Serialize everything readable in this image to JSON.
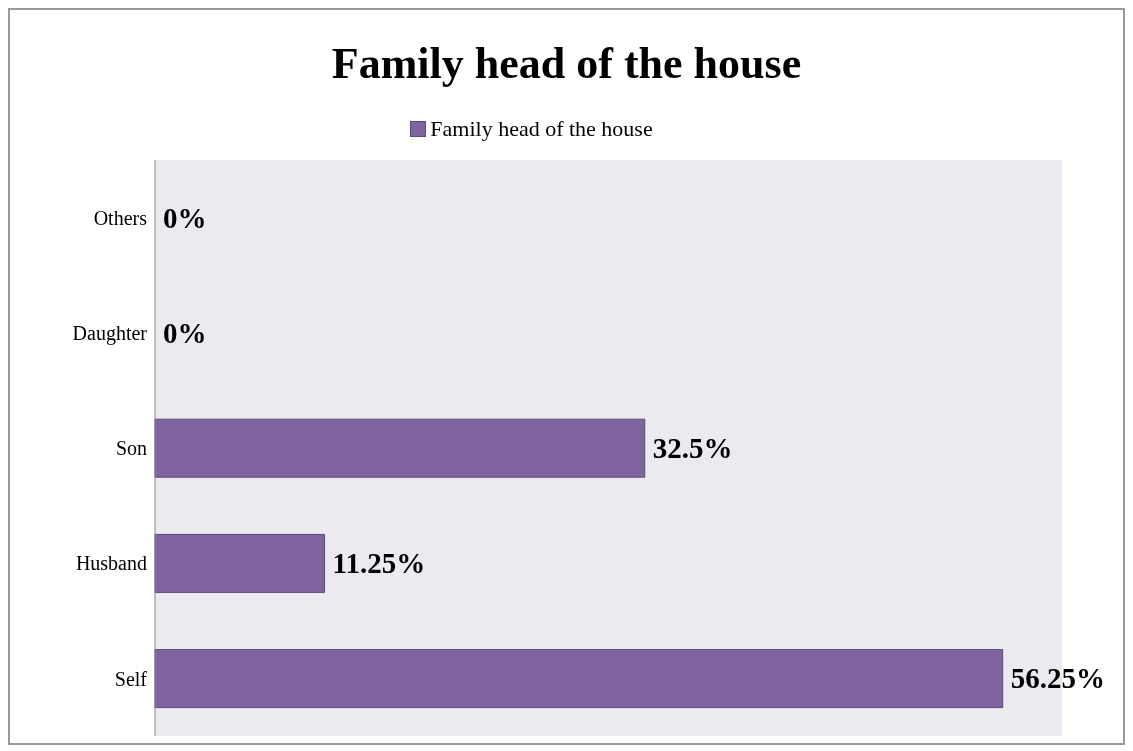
{
  "chart_data": {
    "type": "bar",
    "orientation": "horizontal",
    "title": "Family head of the house",
    "categories": [
      "Others",
      "Daughter",
      "Son",
      "Husband",
      "Self"
    ],
    "series": [
      {
        "name": "Family head of the house",
        "color": "#8064a2",
        "values": [
          0,
          0,
          32.5,
          11.25,
          56.25
        ],
        "value_labels": [
          "0%",
          "0%",
          "32.5%",
          "11.25%",
          "56.25%"
        ]
      }
    ],
    "legend": "top"
  }
}
